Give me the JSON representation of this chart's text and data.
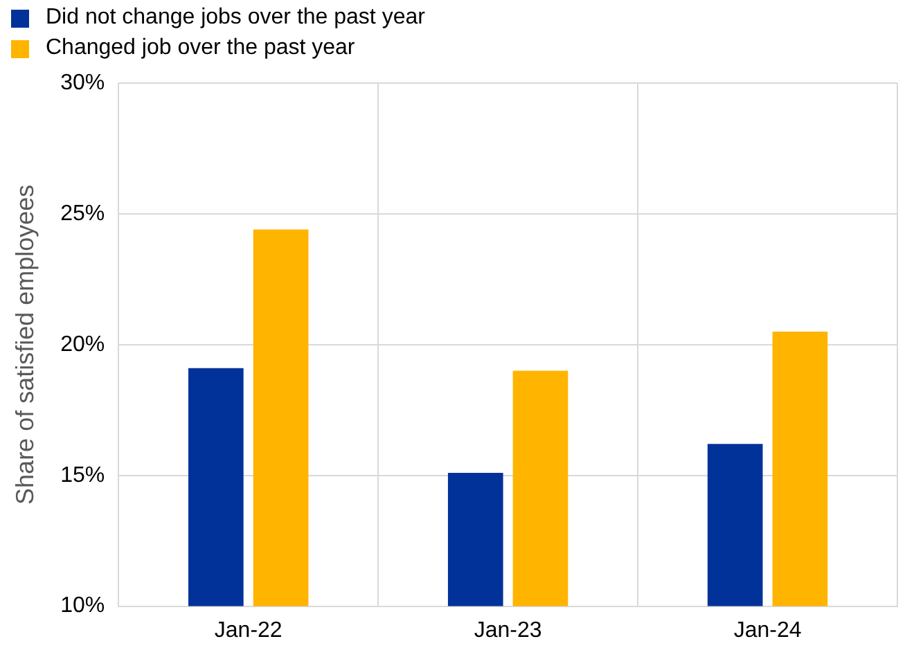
{
  "chart_data": {
    "type": "bar",
    "ylabel": "Share of satisfied employees",
    "categories": [
      "Jan-22",
      "Jan-23",
      "Jan-24"
    ],
    "series": [
      {
        "name": "Did not change jobs over the past year",
        "color": "#003299",
        "values": [
          19.1,
          15.1,
          16.2
        ]
      },
      {
        "name": "Changed job over the past year",
        "color": "#ffb400",
        "values": [
          24.4,
          19.0,
          20.5
        ]
      }
    ],
    "ylim": [
      10,
      30
    ],
    "yticks": [
      {
        "value": 10,
        "label": "10%"
      },
      {
        "value": 15,
        "label": "15%"
      },
      {
        "value": 20,
        "label": "20%"
      },
      {
        "value": 25,
        "label": "25%"
      },
      {
        "value": 30,
        "label": "30%"
      }
    ],
    "grid": true,
    "legend": "top left"
  }
}
